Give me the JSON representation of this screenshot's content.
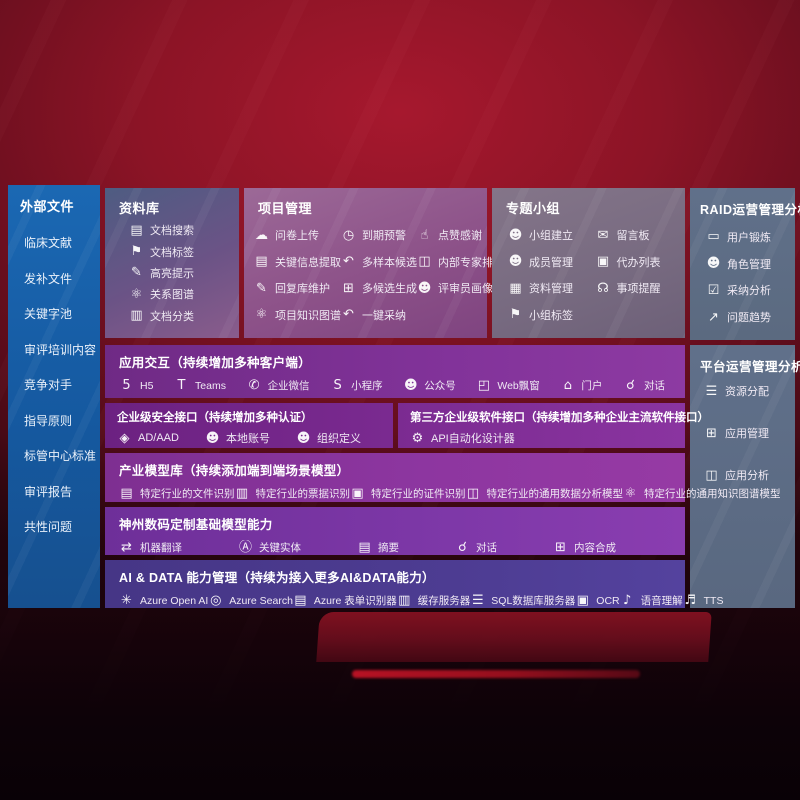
{
  "colors": {
    "background_red": "#8c1426",
    "sidebar_blue": "#1b68b3",
    "panel_slate": "#5d6a80",
    "band_purple": "#82339a",
    "band_indigo": "#4d3c92",
    "text": "#ffffff"
  },
  "left_sidebar": {
    "title": "外部文件",
    "items": [
      "临床文献",
      "发补文件",
      "关键字池",
      "审评培训内容",
      "竞争对手",
      "指导原则",
      "标管中心标准",
      "审评报告",
      "共性问题"
    ]
  },
  "library": {
    "title": "资料库",
    "items": [
      {
        "icon": "doc-search-icon",
        "label": "文档搜索"
      },
      {
        "icon": "tag-icon",
        "label": "文档标签"
      },
      {
        "icon": "highlighter-icon",
        "label": "高亮提示"
      },
      {
        "icon": "graph-icon",
        "label": "关系图谱"
      },
      {
        "icon": "doc-classify-icon",
        "label": "文档分类"
      }
    ]
  },
  "project": {
    "title": "项目管理",
    "items": [
      {
        "icon": "cloud-upload-icon",
        "label": "问卷上传"
      },
      {
        "icon": "alarm-icon",
        "label": "到期预警"
      },
      {
        "icon": "thumbs-up-icon",
        "label": "点赞感谢"
      },
      {
        "icon": "doc-extract-icon",
        "label": "关键信息提取"
      },
      {
        "icon": "arrow-back-icon",
        "label": "多样本候选"
      },
      {
        "icon": "ranking-icon",
        "label": "内部专家排名"
      },
      {
        "icon": "pen-icon",
        "label": "回复库维护"
      },
      {
        "icon": "grid-gen-icon",
        "label": "多候选生成"
      },
      {
        "icon": "person-icon",
        "label": "评审员画像"
      },
      {
        "icon": "knowledge-graph-icon",
        "label": "项目知识图谱"
      },
      {
        "icon": "arrow-adopt-icon",
        "label": "一键采纳"
      }
    ]
  },
  "groups": {
    "title": "专题小组",
    "items": [
      {
        "icon": "group-create-icon",
        "label": "小组建立"
      },
      {
        "icon": "message-board-icon",
        "label": "留言板"
      },
      {
        "icon": "member-manage-icon",
        "label": "成员管理"
      },
      {
        "icon": "todo-list-icon",
        "label": "代办列表"
      },
      {
        "icon": "material-manage-icon",
        "label": "资料管理"
      },
      {
        "icon": "bell-icon",
        "label": "事项提醒"
      },
      {
        "icon": "tag-icon",
        "label": "小组标签"
      }
    ]
  },
  "raid": {
    "title": "RAID运营管理分析",
    "items": [
      {
        "icon": "id-card-icon",
        "label": "用户锻炼"
      },
      {
        "icon": "role-icon",
        "label": "角色管理"
      },
      {
        "icon": "qa-chat-icon",
        "label": "采纳分析"
      },
      {
        "icon": "trend-icon",
        "label": "问题趋势"
      }
    ]
  },
  "platform": {
    "title": "平台运营管理分析",
    "items": [
      {
        "icon": "list-icon",
        "label": "资源分配"
      },
      {
        "icon": "app-grid-icon",
        "label": "应用管理"
      },
      {
        "icon": "app-analysis-icon",
        "label": "应用分析"
      }
    ]
  },
  "interaction": {
    "title": "应用交互（持续增加多种客户端）",
    "items": [
      {
        "icon": "h5-icon",
        "label": "H5"
      },
      {
        "icon": "teams-icon",
        "label": "Teams"
      },
      {
        "icon": "wechat-work-icon",
        "label": "企业微信"
      },
      {
        "icon": "miniprogram-icon",
        "label": "小程序"
      },
      {
        "icon": "official-account-icon",
        "label": "公众号"
      },
      {
        "icon": "web-popup-icon",
        "label": "Web飘窗"
      },
      {
        "icon": "portal-icon",
        "label": "门户"
      },
      {
        "icon": "chat-icon",
        "label": "对话"
      }
    ]
  },
  "security": {
    "title": "企业级安全接口（持续增加多种认证）",
    "items": [
      {
        "icon": "ad-aad-icon",
        "label": "AD/AAD"
      },
      {
        "icon": "local-account-icon",
        "label": "本地账号"
      },
      {
        "icon": "org-define-icon",
        "label": "组织定义"
      }
    ]
  },
  "third_party": {
    "title": "第三方企业级软件接口（持续增加多种企业主流软件接口）",
    "items": [
      {
        "icon": "api-designer-icon",
        "label": "API自动化设计器"
      }
    ]
  },
  "industry_models": {
    "title": "产业模型库（持续添加端到端场景模型）",
    "items": [
      {
        "icon": "file-recog-icon",
        "label": "特定行业的文件识别"
      },
      {
        "icon": "invoice-recog-icon",
        "label": "特定行业的票据识别"
      },
      {
        "icon": "id-recog-icon",
        "label": "特定行业的证件识别"
      },
      {
        "icon": "data-model-icon",
        "label": "特定行业的通用数据分析模型"
      },
      {
        "icon": "kg-model-icon",
        "label": "特定行业的通用知识图谱模型"
      }
    ]
  },
  "base_models": {
    "title": "神州数码定制基础模型能力",
    "items": [
      {
        "icon": "translate-icon",
        "label": "机器翻译"
      },
      {
        "icon": "entity-icon",
        "label": "关键实体"
      },
      {
        "icon": "summary-icon",
        "label": "摘要"
      },
      {
        "icon": "chat-icon",
        "label": "对话"
      },
      {
        "icon": "compose-icon",
        "label": "内容合成"
      }
    ]
  },
  "ai_data": {
    "title": "AI & DATA 能力管理（持续为接入更多AI&DATA能力）",
    "items": [
      {
        "icon": "openai-icon",
        "label": "Azure Open AI"
      },
      {
        "icon": "azure-search-icon",
        "label": "Azure Search"
      },
      {
        "icon": "form-recognizer-icon",
        "label": "Azure 表单识别器"
      },
      {
        "icon": "cache-server-icon",
        "label": "缓存服务器"
      },
      {
        "icon": "sql-server-icon",
        "label": "SQL数据库服务器"
      },
      {
        "icon": "ocr-icon",
        "label": "OCR"
      },
      {
        "icon": "speech-icon",
        "label": "语音理解"
      },
      {
        "icon": "tts-icon",
        "label": "TTS"
      }
    ]
  }
}
